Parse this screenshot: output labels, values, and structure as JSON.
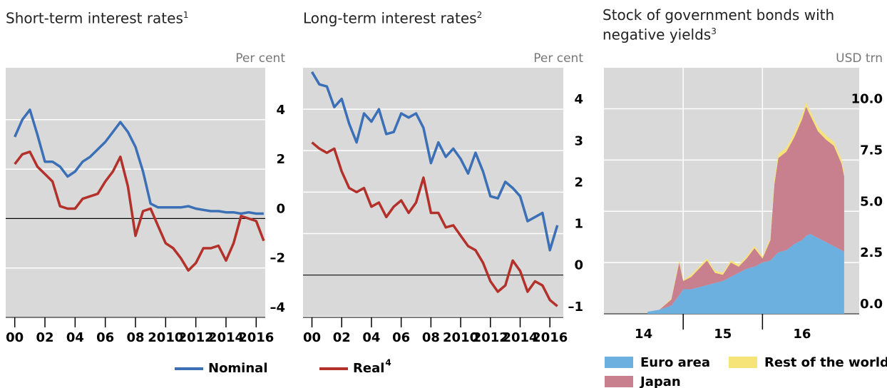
{
  "chart_data": [
    {
      "type": "line",
      "title": "Short-term interest rates",
      "title_footnote": "1",
      "unit": "Per cent",
      "background": "#d9d9d9",
      "grid": true,
      "zero_line": true,
      "x": [
        2000,
        2000.5,
        2001,
        2001.5,
        2002,
        2002.5,
        2003,
        2003.5,
        2004,
        2004.5,
        2005,
        2005.5,
        2006,
        2006.5,
        2007,
        2007.5,
        2008,
        2008.5,
        2009,
        2009.5,
        2010,
        2010.5,
        2011,
        2011.5,
        2012,
        2012.5,
        2013,
        2013.5,
        2014,
        2014.5,
        2015,
        2015.5,
        2016,
        2016.5
      ],
      "xlim": [
        1999.4,
        2016.6
      ],
      "xticks": [
        {
          "value": 2000,
          "label": "00"
        },
        {
          "value": 2002,
          "label": "02"
        },
        {
          "value": 2004,
          "label": "04"
        },
        {
          "value": 2006,
          "label": "06"
        },
        {
          "value": 2008,
          "label": "08"
        },
        2010,
        2012,
        2014,
        2016
      ],
      "ylim": [
        -4,
        6.1
      ],
      "yticks": [
        4,
        2,
        0,
        {
          "value": -2,
          "label": "–2"
        },
        {
          "value": -4,
          "label": "–4"
        }
      ],
      "series": [
        {
          "name": "Nominal",
          "color": "#3b6fb6",
          "values": [
            3.3,
            4.0,
            4.4,
            3.4,
            2.3,
            2.3,
            2.1,
            1.7,
            1.9,
            2.3,
            2.5,
            2.8,
            3.1,
            3.5,
            3.9,
            3.5,
            2.9,
            1.9,
            0.6,
            0.45,
            0.45,
            0.45,
            0.45,
            0.5,
            0.4,
            0.35,
            0.3,
            0.3,
            0.25,
            0.25,
            0.2,
            0.25,
            0.2,
            0.2
          ]
        },
        {
          "name": "Real",
          "footnote": "4",
          "color": "#b3312b",
          "values": [
            2.2,
            2.6,
            2.7,
            2.1,
            1.8,
            1.5,
            0.5,
            0.4,
            0.4,
            0.8,
            0.9,
            1.0,
            1.5,
            1.9,
            2.5,
            1.3,
            -0.7,
            0.3,
            0.4,
            -0.3,
            -1.0,
            -1.2,
            -1.6,
            -2.1,
            -1.8,
            -1.2,
            -1.2,
            -1.1,
            -1.7,
            -1.0,
            0.1,
            0.0,
            -0.1,
            -0.9
          ]
        }
      ]
    },
    {
      "type": "line",
      "title": "Long-term interest rates",
      "title_footnote": "2",
      "unit": "Per cent",
      "background": "#d9d9d9",
      "grid": true,
      "zero_line": true,
      "x": [
        2000,
        2000.5,
        2001,
        2001.5,
        2002,
        2002.5,
        2003,
        2003.5,
        2004,
        2004.5,
        2005,
        2005.5,
        2006,
        2006.5,
        2007,
        2007.5,
        2008,
        2008.5,
        2009,
        2009.5,
        2010,
        2010.5,
        2011,
        2011.5,
        2012,
        2012.5,
        2013,
        2013.5,
        2014,
        2014.5,
        2015,
        2015.5,
        2016,
        2016.5
      ],
      "xlim": [
        1999.4,
        2016.9
      ],
      "xticks": [
        {
          "value": 2000,
          "label": "00"
        },
        {
          "value": 2002,
          "label": "02"
        },
        {
          "value": 2004,
          "label": "04"
        },
        {
          "value": 2006,
          "label": "06"
        },
        {
          "value": 2008,
          "label": "08"
        },
        2010,
        2012,
        2014,
        2016
      ],
      "ylim": [
        -1.02,
        5.0
      ],
      "yticks": [
        4,
        3,
        2,
        1,
        0,
        {
          "value": -1,
          "label": "–1"
        }
      ],
      "series": [
        {
          "color": "#3b6fb6",
          "values": [
            4.9,
            4.6,
            4.55,
            4.05,
            4.25,
            3.65,
            3.2,
            3.9,
            3.7,
            4.0,
            3.4,
            3.45,
            3.9,
            3.8,
            3.9,
            3.55,
            2.7,
            3.2,
            2.85,
            3.05,
            2.8,
            2.45,
            2.95,
            2.5,
            1.9,
            1.85,
            2.25,
            2.1,
            1.9,
            1.3,
            1.4,
            1.5,
            0.6,
            1.2
          ]
        },
        {
          "color": "#b3312b",
          "values": [
            3.2,
            3.05,
            2.95,
            3.05,
            2.5,
            2.1,
            2.0,
            2.1,
            1.65,
            1.75,
            1.4,
            1.65,
            1.8,
            1.5,
            1.75,
            2.35,
            1.5,
            1.5,
            1.15,
            1.2,
            0.95,
            0.7,
            0.6,
            0.3,
            -0.15,
            -0.4,
            -0.25,
            0.35,
            0.1,
            -0.4,
            -0.15,
            -0.25,
            -0.6,
            -0.75
          ]
        }
      ]
    },
    {
      "type": "stacked_area",
      "title": "Stock of government bonds with negative yields",
      "title_footnote": "3",
      "unit": "USD trn",
      "background": "#d9d9d9",
      "grid": true,
      "x": [
        2014.55,
        2014.7,
        2014.85,
        2014.95,
        2015.0,
        2015.1,
        2015.2,
        2015.3,
        2015.4,
        2015.5,
        2015.6,
        2015.7,
        2015.8,
        2015.9,
        2016.0,
        2016.1,
        2016.15,
        2016.2,
        2016.3,
        2016.4,
        2016.5,
        2016.55,
        2016.6,
        2016.7,
        2016.8,
        2016.9,
        2017.0,
        2017.03
      ],
      "xlim": [
        2014,
        2017.22
      ],
      "xticks": [
        {
          "value": 2014.5,
          "label": "14"
        },
        {
          "value": 2015.5,
          "label": "15"
        },
        {
          "value": 2016.5,
          "label": "16"
        }
      ],
      "xgrid": [
        2015,
        2016
      ],
      "ylim": [
        0,
        12
      ],
      "yticks": [
        {
          "value": 0,
          "label": "0.0"
        },
        2.5,
        {
          "value": 5,
          "label": "5.0"
        },
        7.5,
        {
          "value": 10,
          "label": "10.0"
        }
      ],
      "series": [
        {
          "name": "Euro area",
          "color": "#6cb0e0",
          "values": [
            0.1,
            0.2,
            0.4,
            0.9,
            1.2,
            1.2,
            1.3,
            1.4,
            1.5,
            1.6,
            1.8,
            2.0,
            2.2,
            2.3,
            2.5,
            2.6,
            2.8,
            3.0,
            3.1,
            3.4,
            3.6,
            3.8,
            3.9,
            3.7,
            3.5,
            3.3,
            3.1,
            3.0
          ]
        },
        {
          "name": "Japan",
          "color": "#c8808e",
          "values": [
            0,
            0,
            0.3,
            1.6,
            0.4,
            0.6,
            0.9,
            1.2,
            0.5,
            0.3,
            0.7,
            0.3,
            0.5,
            0.9,
            0.2,
            1.0,
            3.5,
            4.6,
            4.8,
            5.2,
            5.9,
            6.3,
            5.8,
            5.2,
            5.0,
            4.9,
            4.2,
            3.7
          ]
        },
        {
          "name": "Rest of the world",
          "color": "#f7e479",
          "values": [
            0,
            0,
            0.05,
            0.1,
            0.05,
            0.1,
            0.1,
            0.1,
            0.1,
            0.1,
            0.1,
            0.1,
            0.1,
            0.1,
            0.1,
            0.1,
            0.2,
            0.2,
            0.2,
            0.2,
            0.2,
            0.2,
            0.2,
            0.2,
            0.2,
            0.2,
            0.2,
            0.2
          ]
        }
      ]
    }
  ]
}
